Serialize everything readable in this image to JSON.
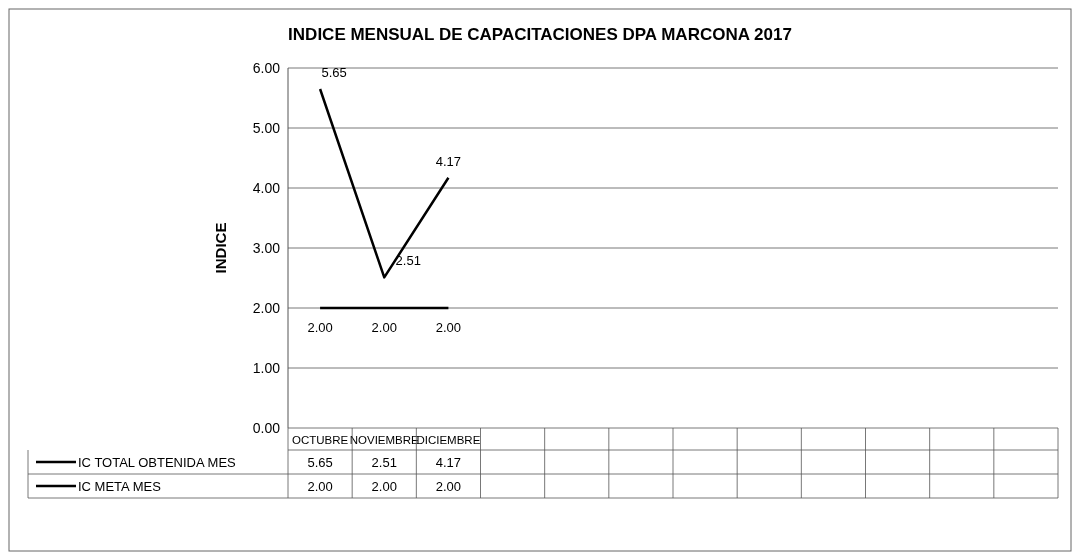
{
  "chart_data": {
    "type": "line",
    "title": "INDICE MENSUAL DE CAPACITACIONES DPA MARCONA 2017",
    "ylabel": "INDICE",
    "categories": [
      "OCTUBRE",
      "NOVIEMBRE",
      "DICIEMBRE",
      null,
      null,
      null,
      null,
      null,
      null,
      null,
      null,
      null
    ],
    "series": [
      {
        "name": "IC TOTAL OBTENIDA MES",
        "color": "#000000",
        "values": [
          5.65,
          2.51,
          4.17,
          null,
          null,
          null,
          null,
          null,
          null,
          null,
          null,
          null
        ],
        "value_labels": [
          "5.65",
          "2.51",
          "4.17",
          null,
          null,
          null,
          null,
          null,
          null,
          null,
          null,
          null
        ]
      },
      {
        "name": "IC META MES",
        "color": "#000000",
        "values": [
          2,
          2,
          2,
          null,
          null,
          null,
          null,
          null,
          null,
          null,
          null,
          null
        ],
        "value_labels": [
          "2.00",
          "2.00",
          "2.00",
          null,
          null,
          null,
          null,
          null,
          null,
          null,
          null,
          null
        ]
      }
    ],
    "ylim": [
      0,
      6
    ],
    "yticks": [
      {
        "value": 0,
        "label": "0.00"
      },
      {
        "value": 1,
        "label": "1.00"
      },
      {
        "value": 2,
        "label": "2.00"
      },
      {
        "value": 3,
        "label": "3.00"
      },
      {
        "value": 4,
        "label": "4.00"
      },
      {
        "value": 5,
        "label": "5.00"
      },
      {
        "value": 6,
        "label": "6.00"
      }
    ],
    "grid": "y",
    "legend": "bottom",
    "marker": "none",
    "line_style": "solid"
  }
}
